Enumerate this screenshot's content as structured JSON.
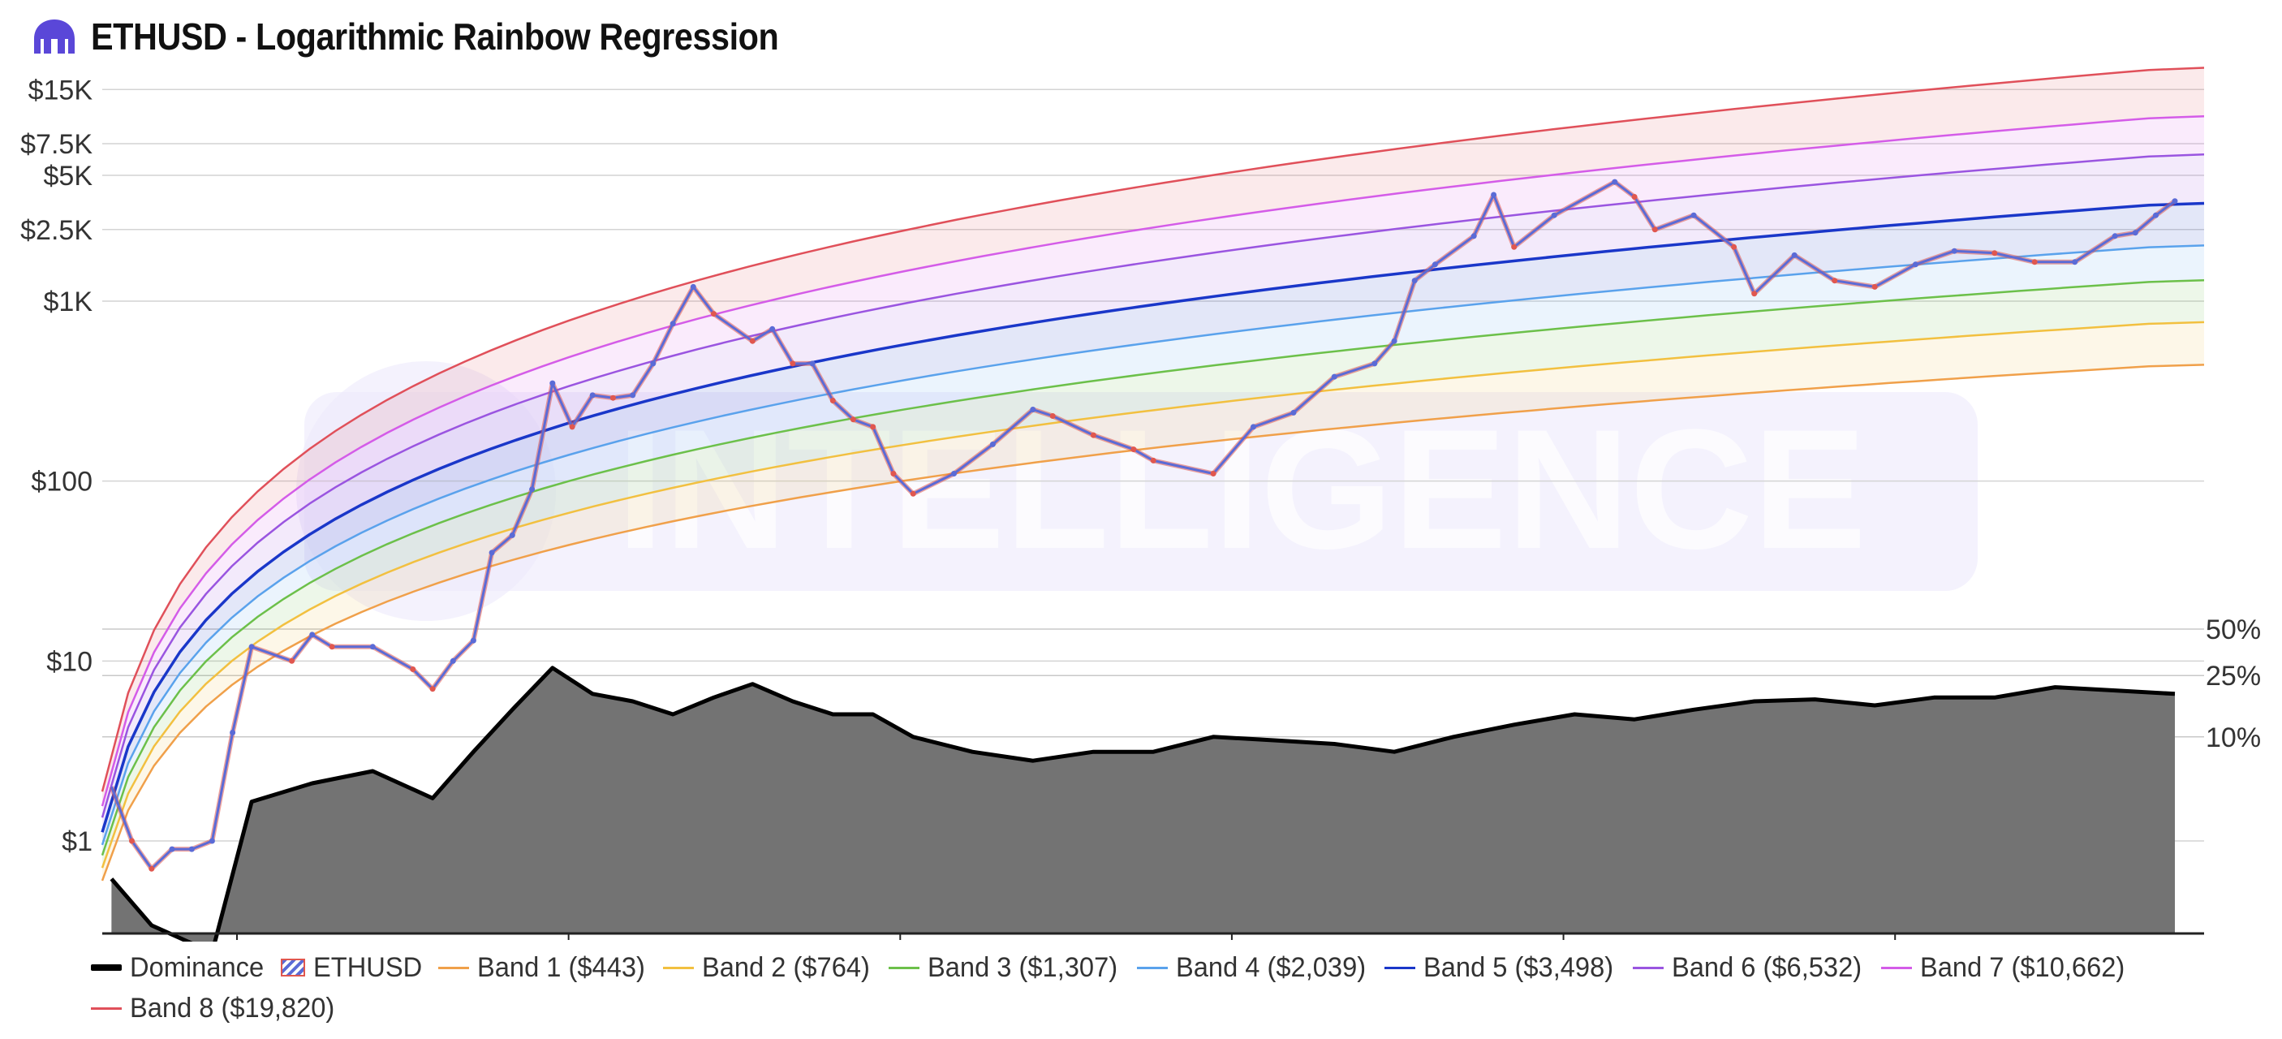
{
  "title": "ETHUSD - Logarithmic Rainbow Regression",
  "watermark": "INTELLIGENCE",
  "logo_icon": "kraken-logo-icon",
  "colors": {
    "ethusd_up": "#5b6bd6",
    "ethusd_down": "#e0574f",
    "dominance_fill": "#737373",
    "dominance_line": "#000000",
    "watermark": "#ece9fb",
    "band1": "#f0a04a",
    "band2": "#f2c040",
    "band3": "#6cc04a",
    "band4": "#5aa2ec",
    "band5": "#1a37c9",
    "band6": "#9a55e0",
    "band7": "#d45ce8",
    "band8": "#e0505a"
  },
  "chart_data": {
    "type": "line",
    "title": "ETHUSD - Logarithmic Rainbow Regression",
    "y_scale": "log",
    "y_ticks": [
      "$15K",
      "$7.5K",
      "$5K",
      "$2.5K",
      "$1K",
      "$100",
      "$10",
      "$1"
    ],
    "y_tick_values": [
      15000,
      7500,
      5000,
      2500,
      1000,
      100,
      10,
      1
    ],
    "y2_ticks": [
      "50%",
      "25%",
      "10%"
    ],
    "y2_tick_values": [
      50,
      25,
      10
    ],
    "x_range": [
      "2015-08",
      "2024-03"
    ],
    "legend_position": "bottom",
    "series": [
      {
        "name": "ETHUSD",
        "x": [
          "2015-08",
          "2015-09",
          "2015-10",
          "2015-11",
          "2015-12",
          "2016-01",
          "2016-02",
          "2016-03",
          "2016-05",
          "2016-06",
          "2016-07",
          "2016-09",
          "2016-11",
          "2016-12",
          "2017-01",
          "2017-02",
          "2017-03",
          "2017-04",
          "2017-05",
          "2017-06",
          "2017-07",
          "2017-08",
          "2017-09",
          "2017-10",
          "2017-11",
          "2017-12",
          "2018-01",
          "2018-02",
          "2018-04",
          "2018-05",
          "2018-06",
          "2018-07",
          "2018-08",
          "2018-09",
          "2018-10",
          "2018-11",
          "2018-12",
          "2019-02",
          "2019-04",
          "2019-06",
          "2019-07",
          "2019-09",
          "2019-11",
          "2019-12",
          "2020-03",
          "2020-05",
          "2020-07",
          "2020-09",
          "2020-11",
          "2020-12",
          "2021-01",
          "2021-02",
          "2021-04",
          "2021-05",
          "2021-06",
          "2021-08",
          "2021-11",
          "2021-12",
          "2022-01",
          "2022-03",
          "2022-05",
          "2022-06",
          "2022-08",
          "2022-10",
          "2022-12",
          "2023-02",
          "2023-04",
          "2023-06",
          "2023-08",
          "2023-10",
          "2023-12",
          "2024-01",
          "2024-02",
          "2024-03"
        ],
        "values": [
          2.0,
          1.0,
          0.7,
          0.9,
          0.9,
          1.0,
          4.0,
          12.0,
          10.0,
          14.0,
          12.0,
          12.0,
          9.0,
          7.0,
          10.0,
          13.0,
          40.0,
          50.0,
          90.0,
          350.0,
          200.0,
          300.0,
          290.0,
          300.0,
          450.0,
          750.0,
          1200.0,
          850.0,
          600.0,
          700.0,
          450.0,
          450.0,
          280.0,
          220.0,
          200.0,
          110.0,
          85.0,
          110.0,
          160.0,
          250.0,
          230.0,
          180.0,
          150.0,
          130.0,
          110.0,
          200.0,
          240.0,
          380.0,
          450.0,
          600.0,
          1300.0,
          1600.0,
          2300.0,
          3900.0,
          2000.0,
          3000.0,
          4600.0,
          3800.0,
          2500.0,
          3000.0,
          2000.0,
          1100.0,
          1800.0,
          1300.0,
          1200.0,
          1600.0,
          1900.0,
          1850.0,
          1650.0,
          1650.0,
          2300.0,
          2400.0,
          3000.0,
          3600.0
        ]
      },
      {
        "name": "Dominance",
        "axis": "right",
        "x": [
          "2015-08",
          "2015-10",
          "2016-01",
          "2016-03",
          "2016-06",
          "2016-09",
          "2016-12",
          "2017-02",
          "2017-04",
          "2017-06",
          "2017-08",
          "2017-10",
          "2017-12",
          "2018-02",
          "2018-04",
          "2018-06",
          "2018-08",
          "2018-10",
          "2018-12",
          "2019-03",
          "2019-06",
          "2019-09",
          "2019-12",
          "2020-03",
          "2020-06",
          "2020-09",
          "2020-12",
          "2021-03",
          "2021-06",
          "2021-09",
          "2021-12",
          "2022-03",
          "2022-06",
          "2022-09",
          "2022-12",
          "2023-03",
          "2023-06",
          "2023-09",
          "2023-12",
          "2024-03"
        ],
        "values": [
          1.2,
          0.6,
          0.4,
          3.8,
          5.0,
          6.0,
          4.0,
          8.0,
          15.0,
          28.0,
          19.0,
          17.0,
          14.0,
          18.0,
          22.0,
          17.0,
          14.0,
          14.0,
          10.0,
          8.0,
          7.0,
          8.0,
          8.0,
          10.0,
          9.5,
          9.0,
          8.0,
          10.0,
          12.0,
          14.0,
          13.0,
          15.0,
          17.0,
          17.5,
          16.0,
          18.0,
          18.0,
          21.0,
          20.0,
          19.0
        ]
      },
      {
        "name": "Band 1 ($443)"
      },
      {
        "name": "Band 2 ($764)"
      },
      {
        "name": "Band 3 ($1,307)"
      },
      {
        "name": "Band 4 ($2,039)"
      },
      {
        "name": "Band 5 ($3,498)"
      },
      {
        "name": "Band 6 ($6,532)"
      },
      {
        "name": "Band 7 ($10,662)"
      },
      {
        "name": "Band 8 ($19,820)"
      }
    ],
    "band_end_values": [
      443,
      764,
      1307,
      2039,
      3498,
      6532,
      10662,
      19820
    ]
  },
  "legend": [
    {
      "label": "Dominance",
      "key": "dominance"
    },
    {
      "label": "ETHUSD",
      "key": "ethusd"
    },
    {
      "label": "Band 1 ($443)",
      "key": "band1"
    },
    {
      "label": "Band 2 ($764)",
      "key": "band2"
    },
    {
      "label": "Band 3 ($1,307)",
      "key": "band3"
    },
    {
      "label": "Band 4 ($2,039)",
      "key": "band4"
    },
    {
      "label": "Band 5 ($3,498)",
      "key": "band5"
    },
    {
      "label": "Band 6 ($6,532)",
      "key": "band6"
    },
    {
      "label": "Band 7 ($10,662)",
      "key": "band7"
    },
    {
      "label": "Band 8 ($19,820)",
      "key": "band8"
    }
  ]
}
